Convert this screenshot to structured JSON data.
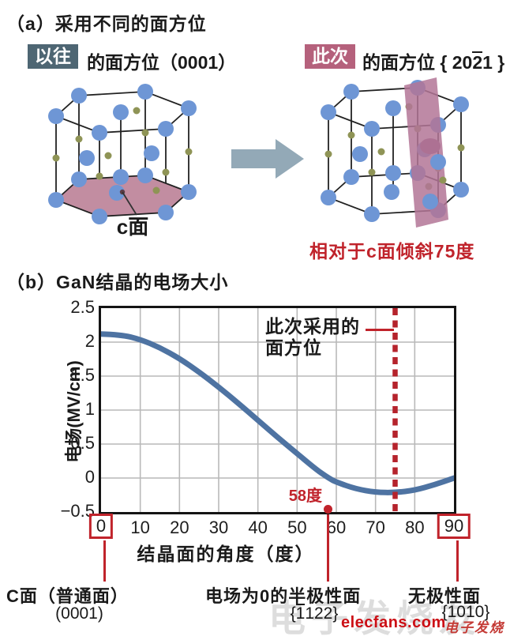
{
  "colors": {
    "accent_red": "#c0232b",
    "curve": "#4e73a2",
    "badge_prev_bg": "#4e6673",
    "badge_next_bg": "#b5617c",
    "c_plane_pink": "#c28da1",
    "tilted_plane_pink": "#b37697",
    "atom_blue": "#6e96d5",
    "atom_olive": "#8f9456",
    "arrow_gray": "#93a9b7",
    "grid_gray": "#b9b9b9"
  },
  "section_a": {
    "title": "（a）采用不同的面方位",
    "prev": {
      "badge": "以往",
      "label": "的面方位（0001）"
    },
    "next": {
      "badge": "此次",
      "label_pre": "的面方位 { 20",
      "bar": "2",
      "label_post": "1 }"
    },
    "c_plane_label": "c面",
    "tilt_note": "相对于c面倾斜75度"
  },
  "section_b": {
    "title": "（b）GaN结晶的电场大小",
    "annotation_line1": "此次采用的",
    "annotation_line2": "面方位",
    "zero_cross_label": "58度",
    "xlabel": "结晶面的角度（度）",
    "ylabel": "电场(MV/cm)",
    "bottom_labels": {
      "c_plane": {
        "line1": "C面（普通面）",
        "line2": "(0001)"
      },
      "semipolar": {
        "line1": "电场为0的半极性面",
        "pre": "{",
        "bar": "1",
        "post": "122}"
      },
      "nonpolar": {
        "line1": "无极性面",
        "pre": "{10",
        "bar": "1",
        "post": "0}"
      }
    }
  },
  "chart_data": {
    "type": "line",
    "title": "GaN结晶的电场大小",
    "xlabel": "结晶面的角度（度）",
    "ylabel": "电场(MV/cm)",
    "xlim": [
      0,
      90
    ],
    "ylim": [
      -0.5,
      2.5
    ],
    "x_ticks": [
      0,
      10,
      20,
      30,
      40,
      50,
      60,
      70,
      80,
      90
    ],
    "y_ticks": [
      2.5,
      2,
      1.5,
      1,
      0.5,
      0,
      -0.5
    ],
    "boxed_x_ticks": [
      0,
      90
    ],
    "grid": true,
    "series": [
      {
        "name": "电场",
        "x": [
          0,
          5,
          10,
          15,
          20,
          25,
          30,
          35,
          40,
          45,
          50,
          55,
          58,
          60,
          65,
          70,
          75,
          80,
          85,
          90
        ],
        "y": [
          2.12,
          2.11,
          2.04,
          1.92,
          1.76,
          1.56,
          1.34,
          1.1,
          0.85,
          0.6,
          0.36,
          0.12,
          0.0,
          -0.06,
          -0.16,
          -0.21,
          -0.215,
          -0.18,
          -0.1,
          0.0
        ]
      }
    ],
    "vline": {
      "x": 75,
      "style": "dashed",
      "color": "#b5232c",
      "label": "此次采用的面方位"
    },
    "zero_cross": {
      "x": 58,
      "label": "58度"
    }
  },
  "watermark": {
    "brand": "elecfans.com",
    "cn": "电子发烧友",
    "ghost": "电子发烧友"
  }
}
